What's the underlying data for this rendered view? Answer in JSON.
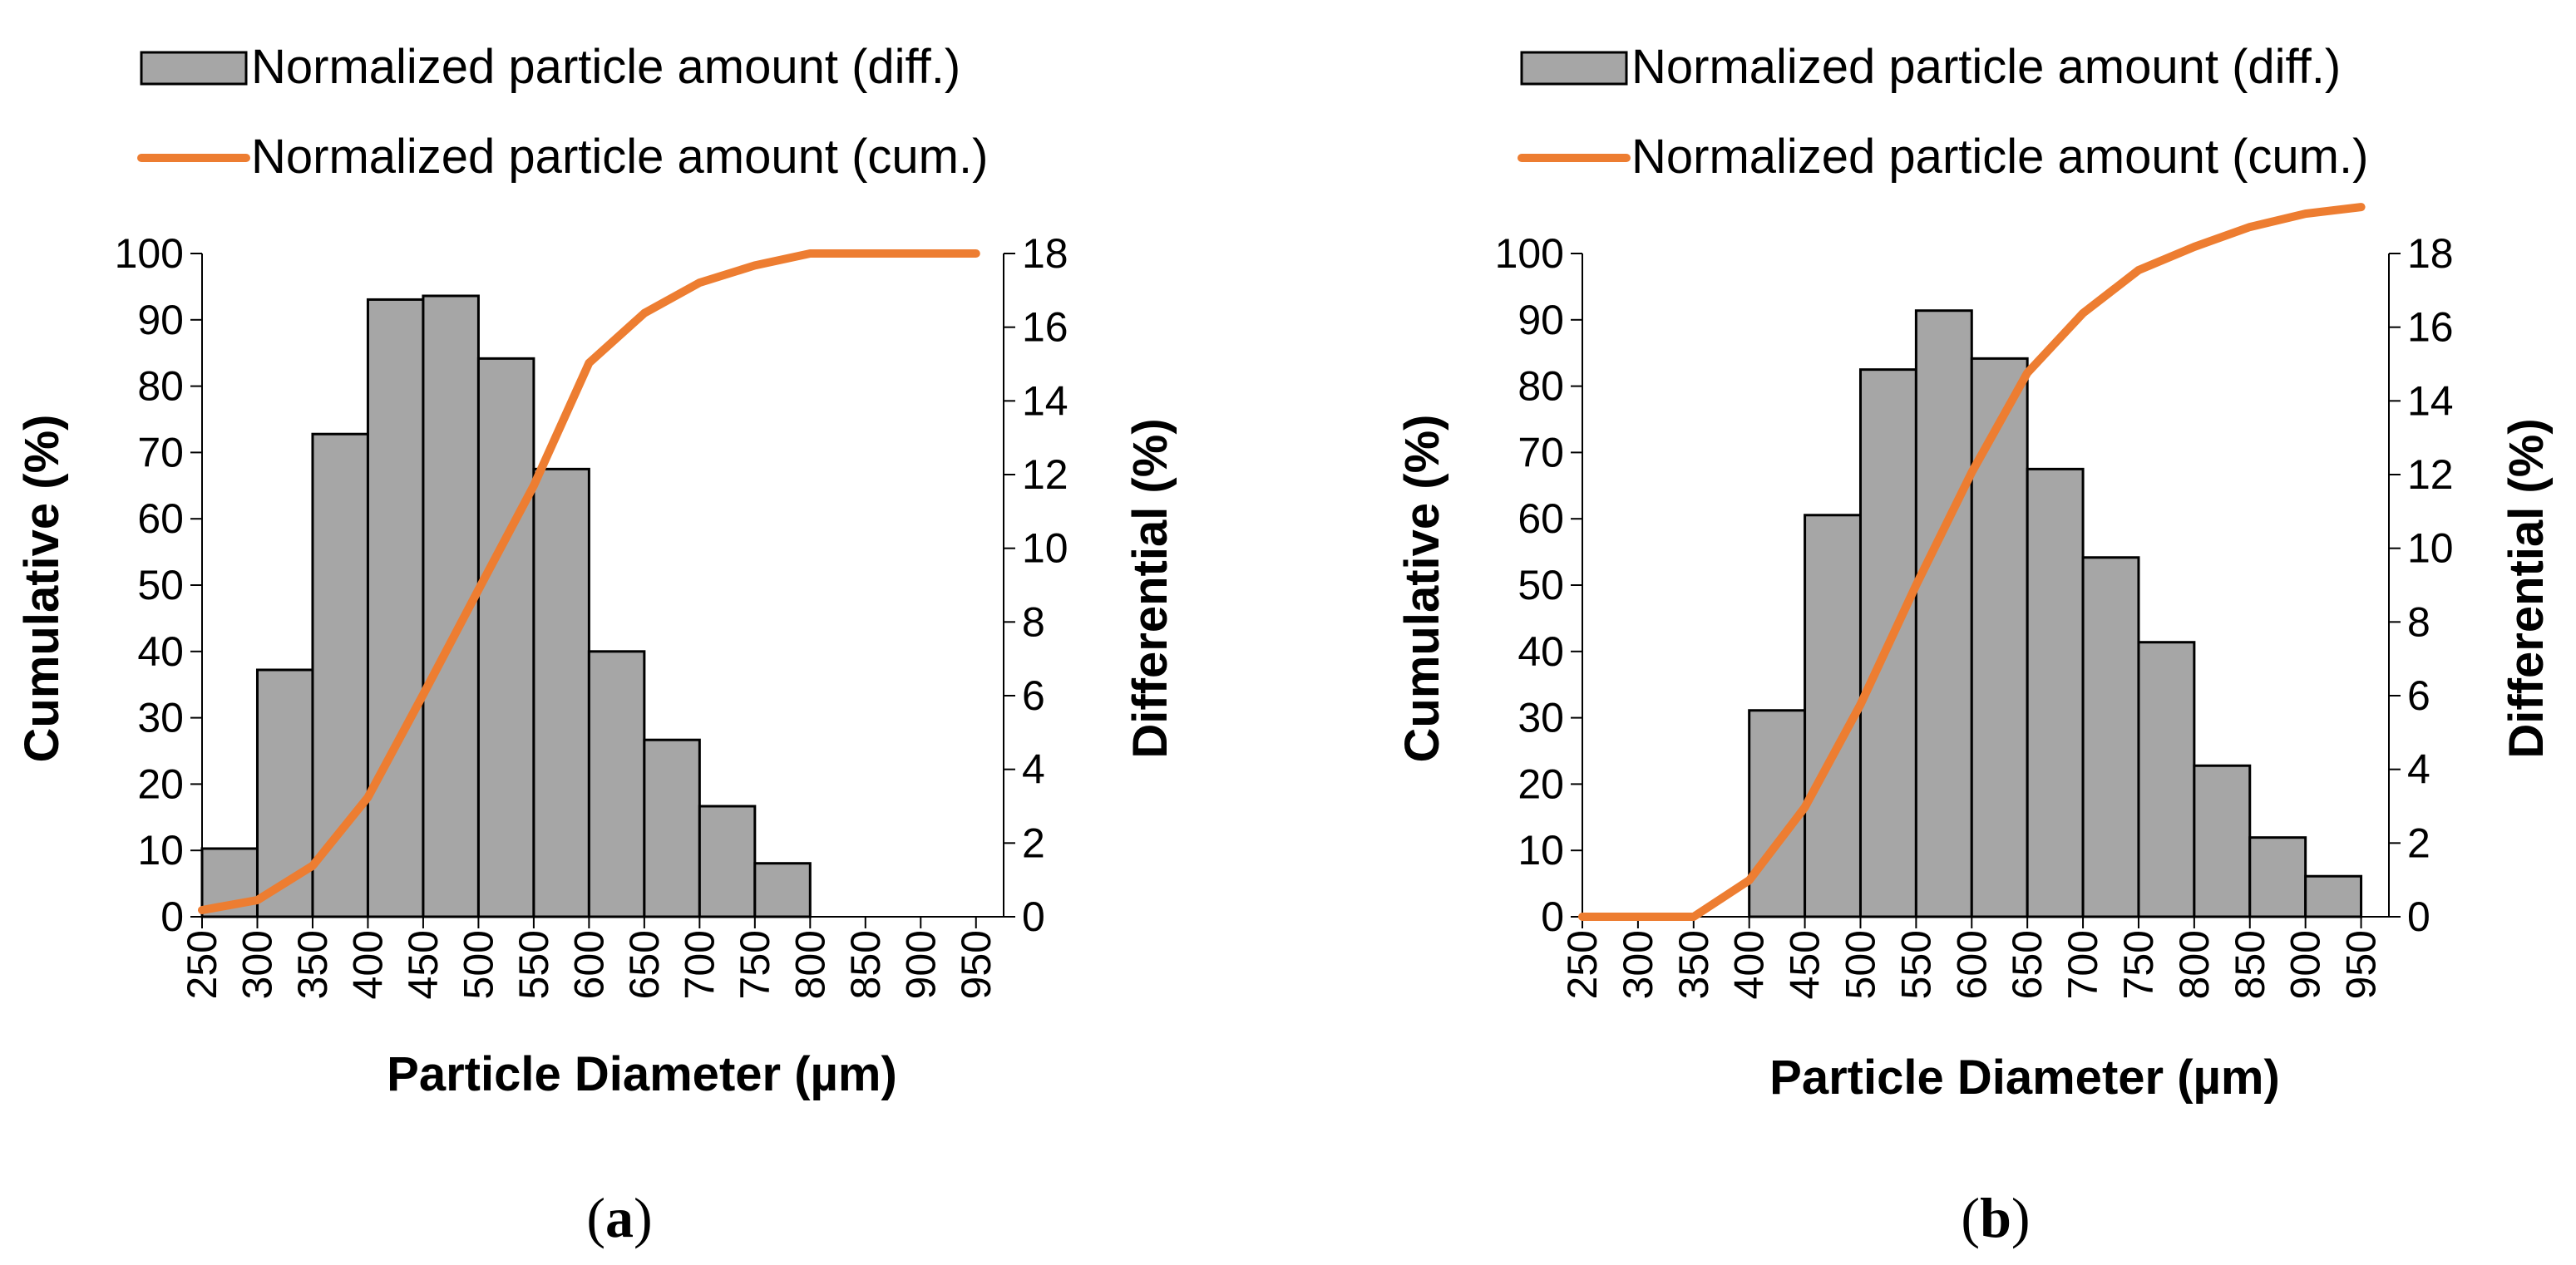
{
  "chart_data": [
    {
      "type": "bar+line",
      "panel_label": "(a)",
      "panel_letter": "a",
      "legend": {
        "diff": "Normalized particle amount (diff.)",
        "cum": "Normalized particle amount (cum.)"
      },
      "xlabel": "Particle Diameter (µm)",
      "ylabel_left": "Cumulative (%)",
      "ylabel_right": "Differential (%)",
      "x_ticks": [
        "250",
        "300",
        "350",
        "400",
        "450",
        "500",
        "550",
        "600",
        "650",
        "700",
        "750",
        "800",
        "850",
        "900",
        "950"
      ],
      "y_left_ticks": [
        "0",
        "10",
        "20",
        "30",
        "40",
        "50",
        "60",
        "70",
        "80",
        "90",
        "100"
      ],
      "y_right_ticks": [
        "0",
        "2",
        "4",
        "6",
        "8",
        "10",
        "12",
        "14",
        "16",
        "18"
      ],
      "ylim_left": [
        0,
        100
      ],
      "ylim_right": [
        0,
        18
      ],
      "bar_categories": [
        275,
        325,
        375,
        425,
        475,
        525,
        575,
        625,
        675,
        725,
        775,
        825,
        875,
        925
      ],
      "differential_values": [
        1.85,
        6.7,
        13.1,
        16.75,
        16.85,
        15.15,
        12.15,
        7.2,
        4.8,
        3.0,
        1.45,
        0,
        0,
        0
      ],
      "cumulative_x": [
        250,
        300,
        350,
        400,
        450,
        500,
        550,
        600,
        650,
        700,
        750,
        800,
        850,
        900,
        950
      ],
      "cumulative_values": [
        1.0,
        2.5,
        7.7,
        18.0,
        33.5,
        49.3,
        65.0,
        83.5,
        91.0,
        95.6,
        98.2,
        100,
        100,
        100,
        100
      ],
      "colors": {
        "bar_fill": "#a6a6a6",
        "bar_edge": "#000000",
        "line": "#ed7d31"
      }
    },
    {
      "type": "bar+line",
      "panel_label": "(b)",
      "panel_letter": "b",
      "legend": {
        "diff": "Normalized particle amount (diff.)",
        "cum": "Normalized particle amount (cum.)"
      },
      "xlabel": "Particle Diameter (µm)",
      "ylabel_left": "Cumulative (%)",
      "ylabel_right": "Differential (%)",
      "x_ticks": [
        "250",
        "300",
        "350",
        "400",
        "450",
        "500",
        "550",
        "600",
        "650",
        "700",
        "750",
        "800",
        "850",
        "900",
        "950"
      ],
      "y_left_ticks": [
        "0",
        "10",
        "20",
        "30",
        "40",
        "50",
        "60",
        "70",
        "80",
        "90",
        "100"
      ],
      "y_right_ticks": [
        "0",
        "2",
        "4",
        "6",
        "8",
        "10",
        "12",
        "14",
        "16",
        "18"
      ],
      "ylim_left": [
        0,
        100
      ],
      "ylim_right": [
        0,
        18
      ],
      "bar_categories": [
        275,
        325,
        375,
        425,
        475,
        525,
        575,
        625,
        675,
        725,
        775,
        825,
        875,
        925
      ],
      "differential_values": [
        0,
        0,
        0,
        5.6,
        10.9,
        14.85,
        16.45,
        15.15,
        12.15,
        9.75,
        7.45,
        4.1,
        2.15,
        1.1
      ],
      "cumulative_x": [
        250,
        300,
        350,
        400,
        450,
        500,
        550,
        600,
        650,
        700,
        750,
        800,
        850,
        900,
        950
      ],
      "cumulative_values": [
        0,
        0,
        0,
        5.5,
        16.5,
        32.0,
        50.0,
        67.0,
        82.0,
        91.0,
        97.5,
        101.0,
        104.0,
        106.0,
        107.0
      ],
      "colors": {
        "bar_fill": "#a6a6a6",
        "bar_edge": "#000000",
        "line": "#ed7d31"
      }
    }
  ]
}
